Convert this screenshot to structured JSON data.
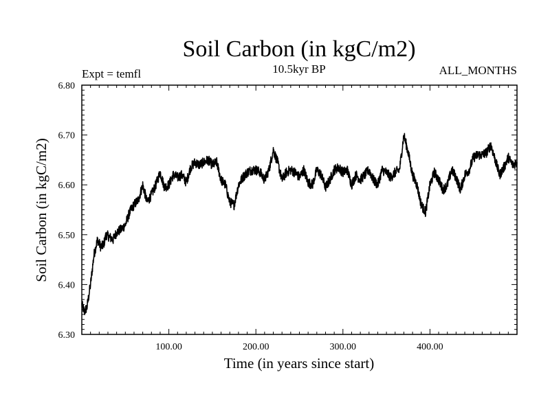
{
  "chart_data": {
    "type": "line",
    "title": "Soil Carbon (in kgC/m2)",
    "subtitle_left": "Expt = temfl",
    "subtitle_center": "10.5kyr BP",
    "subtitle_right": "ALL_MONTHS",
    "xlabel": "Time (in years since start)",
    "ylabel": "Soil Carbon (in kgC/m2)",
    "xlim": [
      0,
      500
    ],
    "ylim": [
      6.3,
      6.8
    ],
    "x_ticks": [
      {
        "value": 100,
        "label": "100.00"
      },
      {
        "value": 200,
        "label": "200.00"
      },
      {
        "value": 300,
        "label": "300.00"
      },
      {
        "value": 400,
        "label": "400.00"
      }
    ],
    "y_ticks": [
      {
        "value": 6.3,
        "label": "6.30"
      },
      {
        "value": 6.4,
        "label": "6.40"
      },
      {
        "value": 6.5,
        "label": "6.50"
      },
      {
        "value": 6.6,
        "label": "6.60"
      },
      {
        "value": 6.7,
        "label": "6.70"
      },
      {
        "value": 6.8,
        "label": "6.80"
      }
    ],
    "grid": false,
    "series": [
      {
        "name": "Soil Carbon",
        "color": "#000000",
        "x": [
          0,
          3,
          6,
          10,
          14,
          18,
          22,
          25,
          28,
          32,
          36,
          40,
          45,
          50,
          55,
          60,
          65,
          70,
          75,
          80,
          85,
          90,
          95,
          100,
          105,
          110,
          115,
          120,
          125,
          130,
          135,
          140,
          145,
          150,
          155,
          160,
          165,
          170,
          175,
          180,
          185,
          190,
          195,
          200,
          205,
          210,
          215,
          220,
          225,
          230,
          235,
          240,
          245,
          250,
          255,
          260,
          265,
          270,
          275,
          280,
          285,
          290,
          295,
          300,
          305,
          310,
          315,
          320,
          325,
          330,
          335,
          340,
          345,
          350,
          355,
          360,
          365,
          370,
          375,
          380,
          385,
          390,
          395,
          400,
          405,
          410,
          415,
          420,
          425,
          430,
          435,
          440,
          445,
          450,
          455,
          460,
          465,
          470,
          475,
          480,
          485,
          490,
          495,
          500
        ],
        "values": [
          6.36,
          6.345,
          6.355,
          6.4,
          6.46,
          6.49,
          6.475,
          6.48,
          6.5,
          6.495,
          6.49,
          6.505,
          6.51,
          6.52,
          6.545,
          6.56,
          6.57,
          6.6,
          6.565,
          6.58,
          6.6,
          6.625,
          6.595,
          6.6,
          6.62,
          6.615,
          6.62,
          6.605,
          6.635,
          6.645,
          6.64,
          6.645,
          6.65,
          6.64,
          6.645,
          6.61,
          6.6,
          6.565,
          6.56,
          6.6,
          6.615,
          6.625,
          6.63,
          6.63,
          6.625,
          6.61,
          6.63,
          6.67,
          6.645,
          6.61,
          6.625,
          6.63,
          6.625,
          6.615,
          6.63,
          6.605,
          6.6,
          6.63,
          6.62,
          6.595,
          6.61,
          6.63,
          6.635,
          6.625,
          6.63,
          6.6,
          6.62,
          6.61,
          6.62,
          6.63,
          6.61,
          6.6,
          6.63,
          6.625,
          6.615,
          6.625,
          6.63,
          6.7,
          6.665,
          6.62,
          6.6,
          6.56,
          6.545,
          6.6,
          6.625,
          6.61,
          6.59,
          6.6,
          6.63,
          6.615,
          6.59,
          6.62,
          6.63,
          6.655,
          6.66,
          6.66,
          6.665,
          6.68,
          6.65,
          6.62,
          6.635,
          6.655,
          6.64,
          6.645
        ]
      }
    ]
  }
}
